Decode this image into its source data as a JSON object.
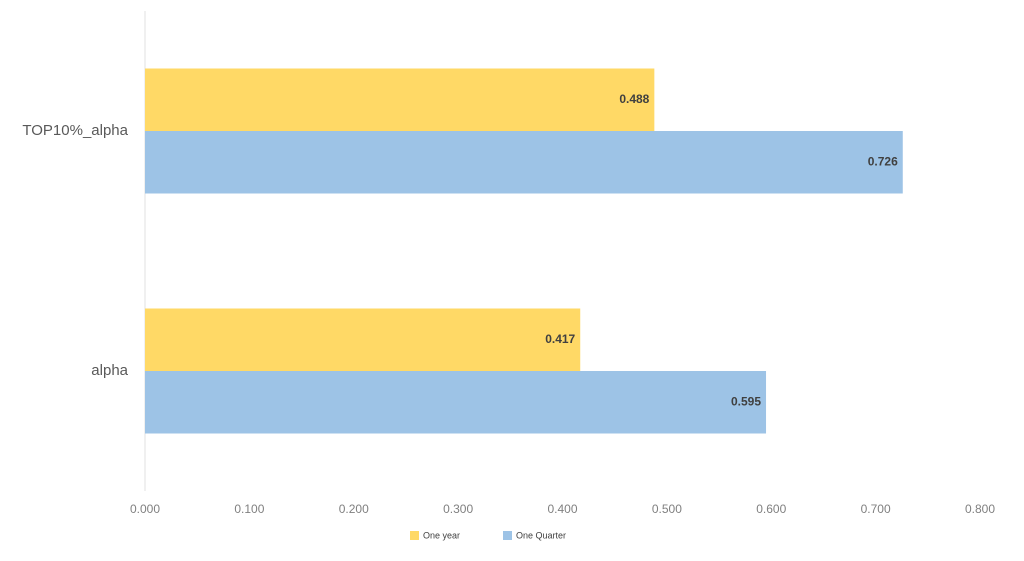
{
  "chart_data": {
    "type": "hbar",
    "categories": [
      "TOP10%_alpha",
      "alpha"
    ],
    "series": [
      {
        "name": "One year",
        "color": "#FFD966",
        "values": [
          0.488,
          0.417
        ]
      },
      {
        "name": "One Quarter",
        "color": "#9DC3E6",
        "values": [
          0.726,
          0.595
        ]
      }
    ],
    "xlim": [
      0,
      0.8
    ],
    "xticks": [
      {
        "value": 0,
        "label": "0.000"
      },
      {
        "value": 0.1,
        "label": "0.100"
      },
      {
        "value": 0.2,
        "label": "0.200"
      },
      {
        "value": 0.3,
        "label": "0.300"
      },
      {
        "value": 0.4,
        "label": "0.400"
      },
      {
        "value": 0.5,
        "label": "0.500"
      },
      {
        "value": 0.6,
        "label": "0.600"
      },
      {
        "value": 0.7,
        "label": "0.700"
      },
      {
        "value": 0.8,
        "label": "0.800"
      }
    ],
    "legend": "bottom"
  }
}
